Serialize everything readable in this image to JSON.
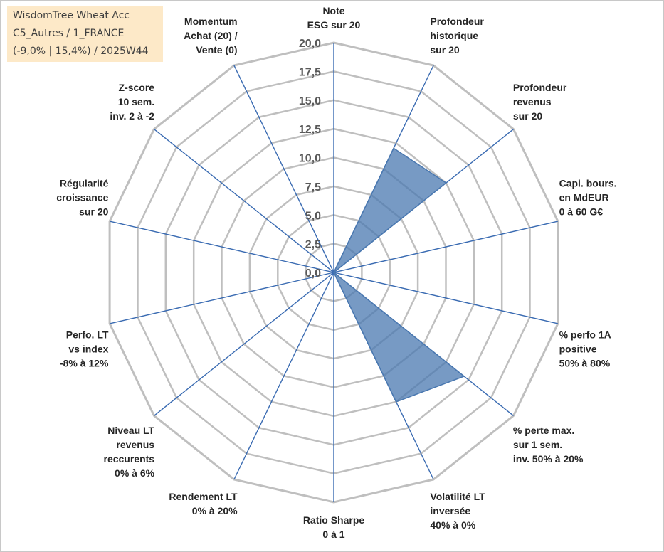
{
  "info_box": {
    "line1": "WisdomTree Wheat Acc",
    "line2": "C5_Autres / 1_FRANCE",
    "line3": "(-9,0% | 15,4%) / 2025W44"
  },
  "chart_data": {
    "type": "radar",
    "title": "",
    "rmax": 20,
    "ticks": [
      "0,0",
      "2,5",
      "5,0",
      "7,5",
      "10,0",
      "12,5",
      "15,0",
      "17,5",
      "20,0"
    ],
    "gridlines": true,
    "axes": [
      [
        "Note",
        "ESG sur 20"
      ],
      [
        "Profondeur",
        "historique",
        "sur 20"
      ],
      [
        "Profondeur",
        "revenus",
        "sur 20"
      ],
      [
        "Capi. bours.",
        "en MdEUR",
        "0 à 60 G€"
      ],
      [
        "% perfo 1A",
        "positive",
        "50% à 80%"
      ],
      [
        "% perte max.",
        "sur 1 sem.",
        "inv. 50% à 20%"
      ],
      [
        "Volatilité LT",
        "inversée",
        "40% à 0%"
      ],
      [
        "Ratio Sharpe",
        "0 à 1"
      ],
      [
        "Rendement LT",
        "0% à 20%"
      ],
      [
        "Niveau LT",
        "revenus",
        "reccurents",
        "0% à 6%"
      ],
      [
        "Perfo. LT",
        "vs index",
        "-8% à 12%"
      ],
      [
        "Régularité",
        "croissance",
        "sur 20"
      ],
      [
        "Z-score",
        "10 sem.",
        "inv. 2 à -2"
      ],
      [
        "Momentum",
        "Achat (20) /",
        "Vente (0)"
      ]
    ],
    "series": [
      {
        "values": [
          0,
          12,
          12.5,
          0,
          0,
          14.5,
          12.5,
          0,
          0,
          0,
          0,
          0,
          0,
          0
        ],
        "color": "#4a78b0"
      }
    ],
    "colors": {
      "grid": "#bfbfbf",
      "spoke": "#3a6bb2",
      "fill": "#4a78b0",
      "tick": "#595959",
      "label": "#262626"
    }
  }
}
